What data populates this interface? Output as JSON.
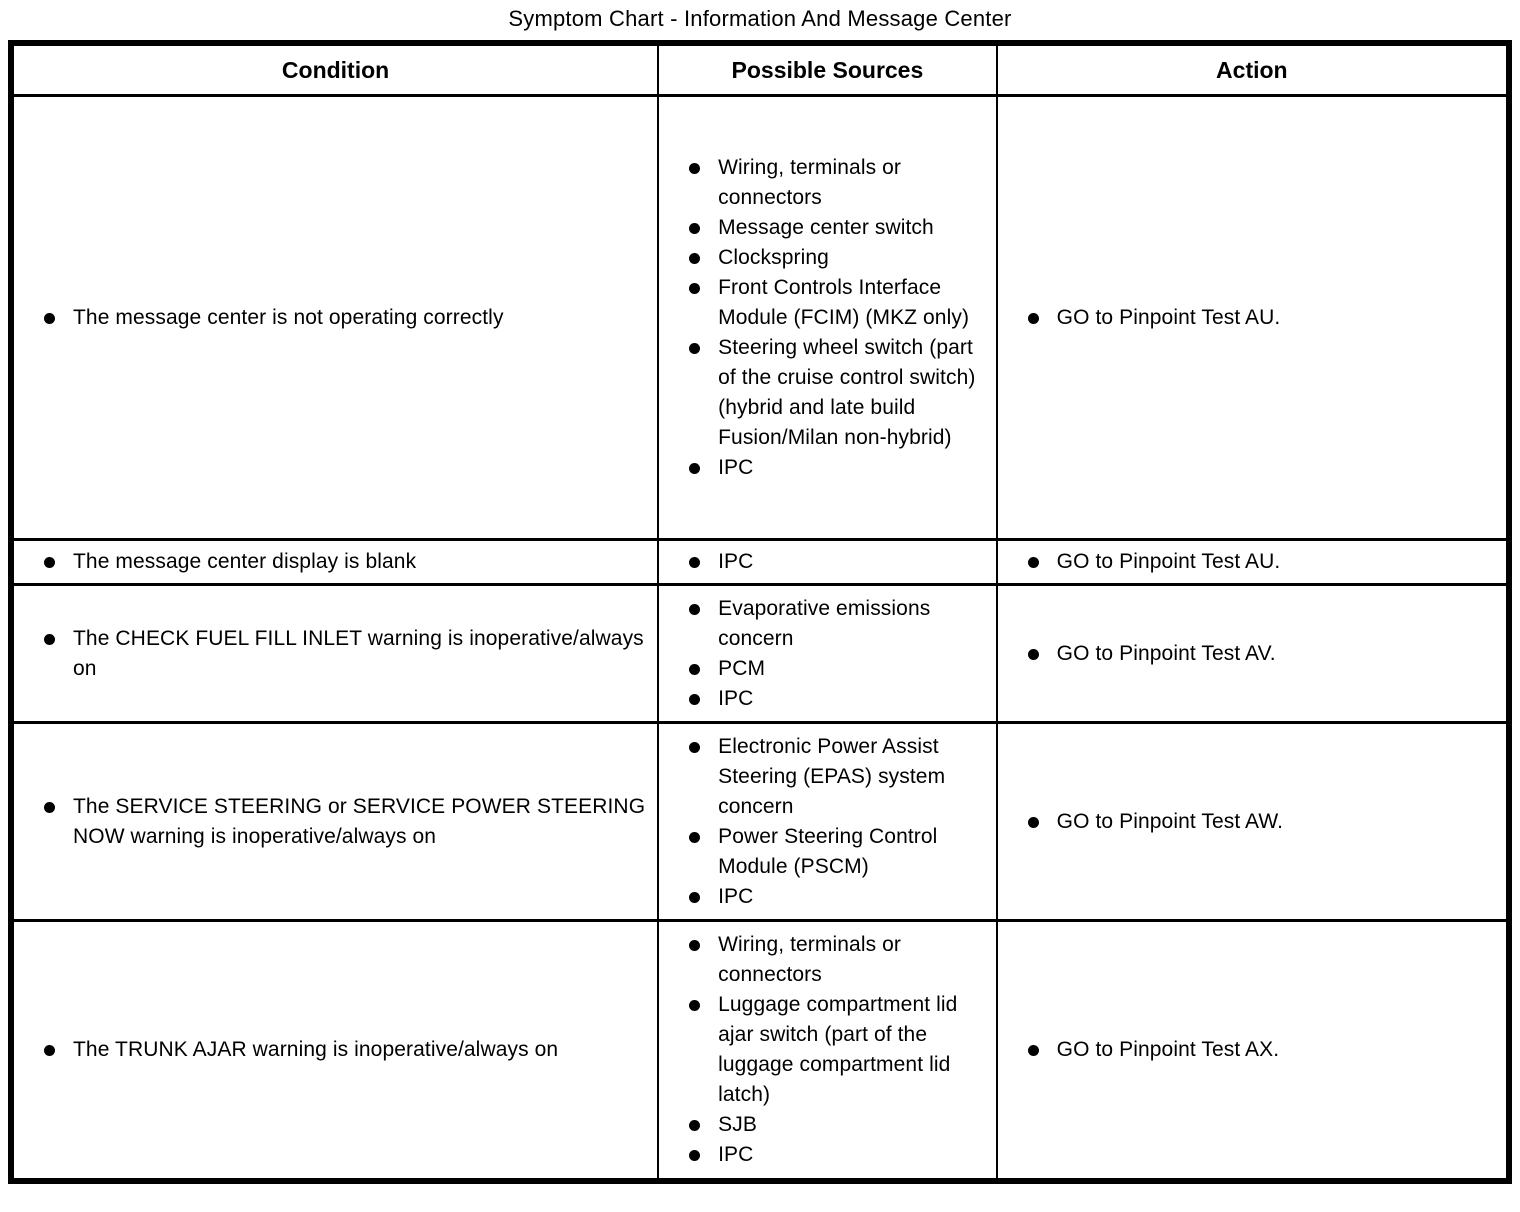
{
  "title": "Symptom Chart - Information And Message Center",
  "table": {
    "headers": [
      "Condition",
      "Possible Sources",
      "Action"
    ],
    "rows": [
      {
        "condition": [
          "The message center is not operating correctly"
        ],
        "sources": [
          "Wiring, terminals or connectors",
          "Message center switch",
          "Clockspring",
          "Front Controls Interface Module (FCIM) (MKZ only)",
          "Steering wheel switch (part of the cruise control switch) (hybrid and late build Fusion/Milan non-hybrid)",
          "IPC"
        ],
        "action": [
          "GO to Pinpoint Test AU."
        ]
      },
      {
        "condition": [
          "The message center display is blank"
        ],
        "sources": [
          "IPC"
        ],
        "action": [
          "GO to Pinpoint Test AU."
        ]
      },
      {
        "condition": [
          "The CHECK FUEL FILL INLET warning is inoperative/always on"
        ],
        "sources": [
          "Evaporative emissions concern",
          "PCM",
          "IPC"
        ],
        "action": [
          "GO to Pinpoint Test AV."
        ]
      },
      {
        "condition": [
          "The SERVICE STEERING or SERVICE POWER STEERING NOW warning is inoperative/always on"
        ],
        "sources": [
          "Electronic Power Assist Steering (EPAS) system concern",
          "Power Steering Control Module (PSCM)",
          "IPC"
        ],
        "action": [
          "GO to Pinpoint Test AW."
        ]
      },
      {
        "condition": [
          "The TRUNK AJAR warning is inoperative/always on"
        ],
        "sources": [
          "Wiring, terminals or connectors",
          "Luggage compartment lid ajar switch (part of the luggage compartment lid latch)",
          "SJB",
          "IPC"
        ],
        "action": [
          "GO to Pinpoint Test AX."
        ]
      }
    ]
  }
}
